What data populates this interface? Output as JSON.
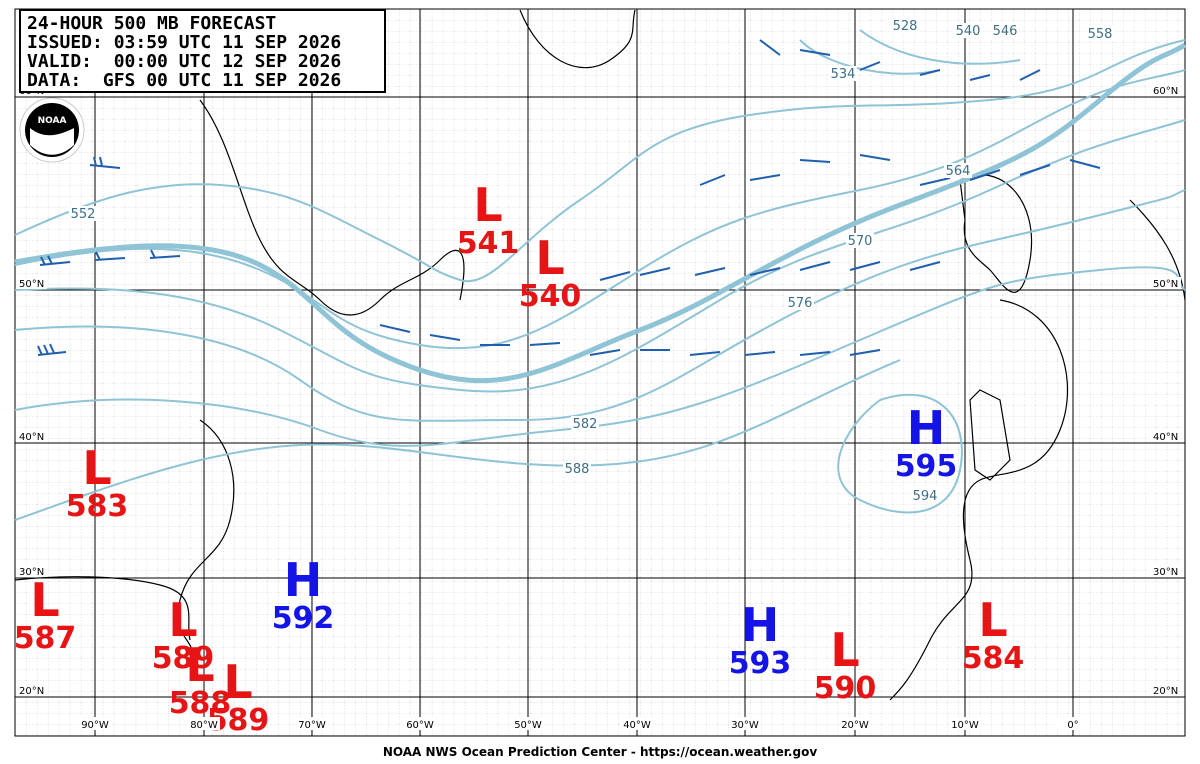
{
  "header": {
    "lines": [
      "24-HOUR 500 MB FORECAST",
      "ISSUED: 03:59 UTC 11 SEP 2026",
      "VALID:  00:00 UTC 12 SEP 2026",
      "DATA:  GFS 00 UTC 11 SEP 2026"
    ]
  },
  "logo": "NOAA",
  "lat_labels": [
    "60°N",
    "50°N",
    "40°N",
    "30°N",
    "20°N"
  ],
  "lon_labels": [
    "90°W",
    "80°W",
    "70°W",
    "60°W",
    "50°W",
    "40°W",
    "30°W",
    "20°W",
    "10°W",
    "0°"
  ],
  "contour_labels": [
    552,
    528,
    534,
    540,
    546,
    558,
    564,
    570,
    576,
    582,
    588,
    594
  ],
  "centers": [
    {
      "type": "L",
      "value": 541
    },
    {
      "type": "L",
      "value": 540
    },
    {
      "type": "L",
      "value": 583
    },
    {
      "type": "H",
      "value": 592
    },
    {
      "type": "L",
      "value": 587
    },
    {
      "type": "L",
      "value": 589
    },
    {
      "type": "L",
      "value": 588
    },
    {
      "type": "L",
      "value": 589
    },
    {
      "type": "H",
      "value": 593
    },
    {
      "type": "L",
      "value": 590
    },
    {
      "type": "H",
      "value": 595
    },
    {
      "type": "L",
      "value": 584
    }
  ],
  "footer": "NOAA NWS Ocean Prediction Center - https://ocean.weather.gov"
}
